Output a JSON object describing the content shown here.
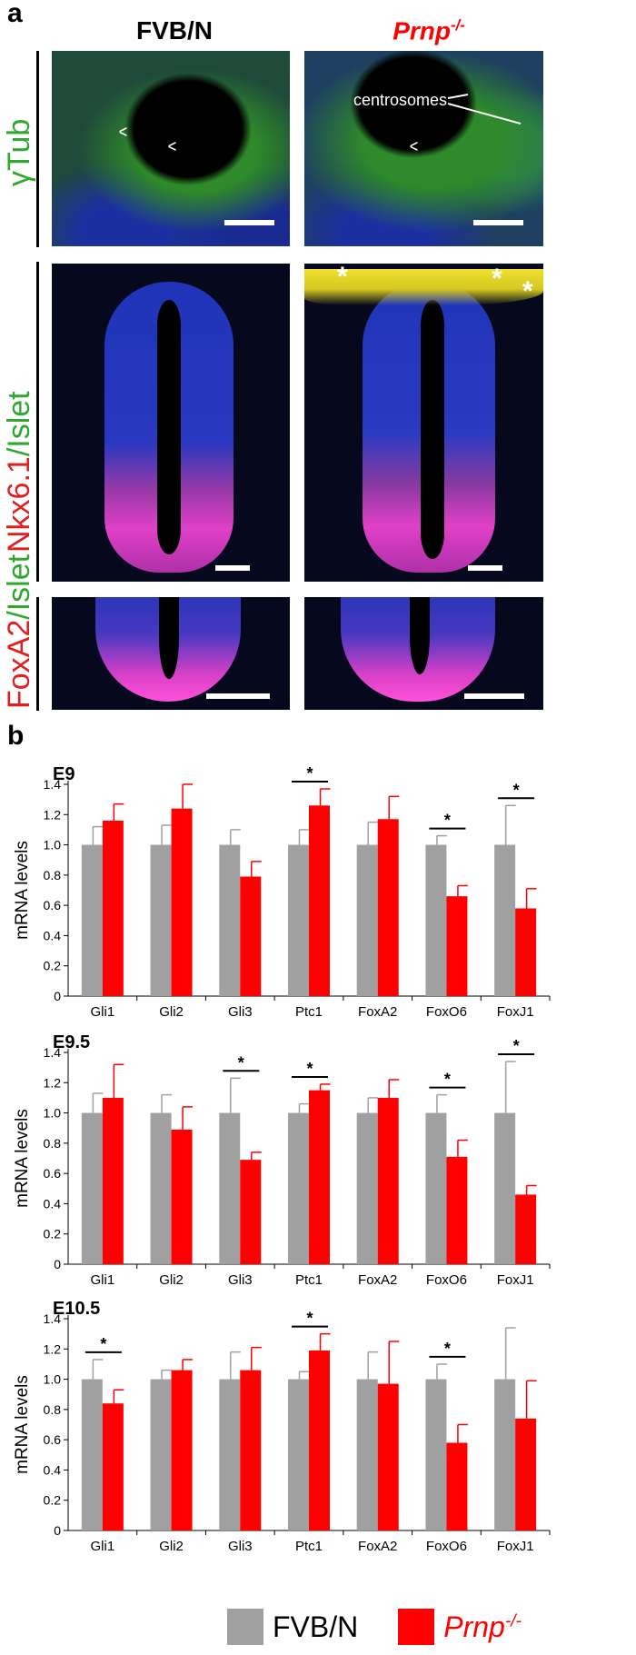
{
  "panel_a": {
    "letter": "a",
    "col_left": "FVB/N",
    "col_right_base": "Prnp",
    "col_right_sup": "-/-",
    "row1_label": "γTub",
    "row2_label_red": "Nkx6.1",
    "row2_label_green": "/Islet",
    "row3_label_red": "FoxA2",
    "row3_label_green": "/Islet",
    "centrosomes_label": "centrosomes",
    "asterisk": "*",
    "arrowhead": "^",
    "colors": {
      "green": "#2ea82e",
      "red": "#e02020",
      "blue": "#1a2fb0",
      "magenta": "#e040d0",
      "yellow": "#f0e020"
    }
  },
  "panel_b": {
    "letter": "b"
  },
  "chart_data": [
    {
      "type": "bar",
      "title": "E9",
      "ylabel": "mRNA levels",
      "ylim": [
        0,
        1.4
      ],
      "yticks": [
        "0",
        "0.2",
        "0.4",
        "0.6",
        "0.8",
        "1.0",
        "1.2",
        "1.4"
      ],
      "categories": [
        "Gli1",
        "Gli2",
        "Gli3",
        "Ptc1",
        "FoxA2",
        "FoxO6",
        "FoxJ1"
      ],
      "series": [
        {
          "name": "FVB/N",
          "values": [
            1.0,
            1.0,
            1.0,
            1.0,
            1.0,
            1.0,
            1.0
          ],
          "errors": [
            0.12,
            0.13,
            0.1,
            0.1,
            0.15,
            0.06,
            0.26
          ]
        },
        {
          "name": "Prnp-/-",
          "values": [
            1.16,
            1.24,
            0.79,
            1.26,
            1.17,
            0.66,
            0.58
          ],
          "errors": [
            0.11,
            0.16,
            0.1,
            0.11,
            0.15,
            0.07,
            0.13
          ]
        }
      ],
      "significant": [
        3,
        5,
        6
      ]
    },
    {
      "type": "bar",
      "title": "E9.5",
      "ylabel": "mRNA levels",
      "ylim": [
        0,
        1.4
      ],
      "yticks": [
        "0",
        "0.2",
        "0.4",
        "0.6",
        "0.8",
        "1.0",
        "1.2",
        "1.4"
      ],
      "categories": [
        "Gli1",
        "Gli2",
        "Gli3",
        "Ptc1",
        "FoxA2",
        "FoxO6",
        "FoxJ1"
      ],
      "series": [
        {
          "name": "FVB/N",
          "values": [
            1.0,
            1.0,
            1.0,
            1.0,
            1.0,
            1.0,
            1.0
          ],
          "errors": [
            0.13,
            0.12,
            0.23,
            0.06,
            0.1,
            0.12,
            0.34
          ]
        },
        {
          "name": "Prnp-/-",
          "values": [
            1.1,
            0.89,
            0.69,
            1.15,
            1.1,
            0.71,
            0.46
          ],
          "errors": [
            0.22,
            0.15,
            0.05,
            0.04,
            0.12,
            0.11,
            0.06
          ]
        }
      ],
      "significant": [
        2,
        3,
        5,
        6
      ]
    },
    {
      "type": "bar",
      "title": "E10.5",
      "ylabel": "mRNA levels",
      "ylim": [
        0,
        1.4
      ],
      "yticks": [
        "0",
        "0.2",
        "0.4",
        "0.6",
        "0.8",
        "1.0",
        "1.2",
        "1.4"
      ],
      "categories": [
        "Gli1",
        "Gli2",
        "Gli3",
        "Ptc1",
        "FoxA2",
        "FoxO6",
        "FoxJ1"
      ],
      "series": [
        {
          "name": "FVB/N",
          "values": [
            1.0,
            1.0,
            1.0,
            1.0,
            1.0,
            1.0,
            1.0
          ],
          "errors": [
            0.13,
            0.06,
            0.18,
            0.05,
            0.18,
            0.1,
            0.34
          ]
        },
        {
          "name": "Prnp-/-",
          "values": [
            0.84,
            1.06,
            1.06,
            1.19,
            0.97,
            0.58,
            0.74
          ],
          "errors": [
            0.09,
            0.07,
            0.15,
            0.11,
            0.28,
            0.12,
            0.25
          ]
        }
      ],
      "significant": [
        0,
        3,
        5
      ]
    }
  ],
  "legend": {
    "items": [
      {
        "label": "FVB/N",
        "color": "#a0a0a0"
      },
      {
        "label_base": "Prnp",
        "label_sup": "-/-",
        "color": "#ff0000"
      }
    ]
  }
}
